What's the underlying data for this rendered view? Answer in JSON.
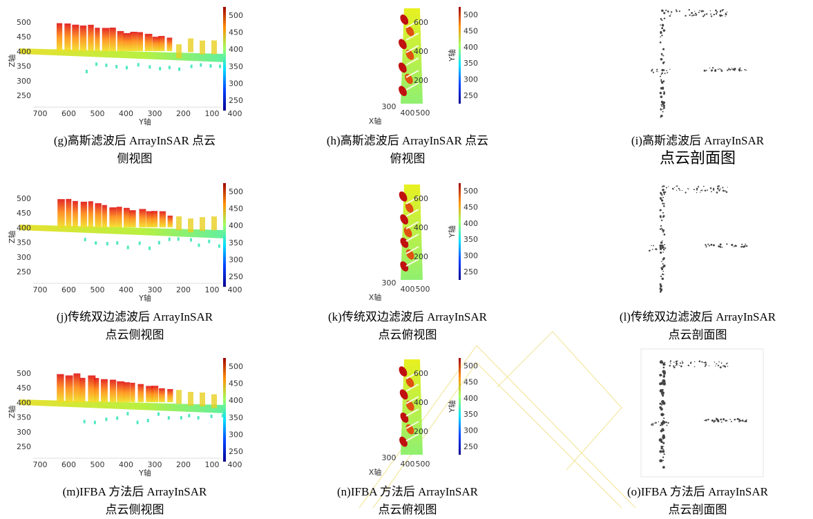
{
  "panels": [
    {
      "type": "side-view",
      "caption": [
        "(g)高斯滤波后 ArrayInSAR 点云",
        "侧视图"
      ],
      "z_axis_label": "Z轴",
      "y_axis_label": "Y轴",
      "z_ticks": [
        "500",
        "450",
        "400",
        "350",
        "300",
        "250"
      ],
      "y_ticks": [
        "700",
        "600",
        "500",
        "400",
        "300",
        "200",
        "100"
      ],
      "depth_tick": "400",
      "colorbar_ticks": [
        "500",
        "450",
        "400",
        "350",
        "300",
        "250"
      ]
    },
    {
      "type": "top-view",
      "caption": [
        "(h)高斯滤波后 ArrayInSAR 点云",
        "俯视图"
      ],
      "y_axis_label": "Y轴",
      "x_axis_label": "X轴",
      "y_ticks": [
        "600",
        "400",
        "200"
      ],
      "x_ticks": [
        "300",
        "400",
        "500"
      ],
      "colorbar_ticks": [
        "500",
        "450",
        "400",
        "350",
        "300",
        "250"
      ]
    },
    {
      "type": "profile",
      "caption": [
        "(i)高斯滤波后 ArrayInSAR",
        "点云剖面图"
      ]
    },
    {
      "type": "side-view",
      "caption": [
        "(j)传统双边滤波后 ArrayInSAR",
        "点云侧视图"
      ],
      "z_axis_label": "Z轴",
      "y_axis_label": "Y轴",
      "z_ticks": [
        "500",
        "450",
        "400",
        "350",
        "300",
        "250"
      ],
      "y_ticks": [
        "700",
        "600",
        "500",
        "400",
        "300",
        "200",
        "100"
      ],
      "depth_tick": "400",
      "colorbar_ticks": [
        "500",
        "450",
        "400",
        "350",
        "300",
        "250"
      ]
    },
    {
      "type": "top-view",
      "caption": [
        "(k)传统双边滤波后 ArrayInSAR",
        "点云俯视图"
      ],
      "y_axis_label": "Y轴",
      "x_axis_label": "X轴",
      "y_ticks": [
        "600",
        "400",
        "200"
      ],
      "x_ticks": [
        "300",
        "400",
        "500"
      ],
      "colorbar_ticks": [
        "500",
        "450",
        "400",
        "350",
        "300",
        "250"
      ]
    },
    {
      "type": "profile",
      "caption": [
        "(l)传统双边滤波后 ArrayInSAR",
        "点云剖面图"
      ]
    },
    {
      "type": "side-view",
      "caption": [
        "(m)IFBA 方法后 ArrayInSAR",
        "点云侧视图"
      ],
      "z_axis_label": "Z轴",
      "y_axis_label": "Y轴",
      "z_ticks": [
        "500",
        "450",
        "400",
        "350",
        "300",
        "250"
      ],
      "y_ticks": [
        "700",
        "600",
        "500",
        "400",
        "300",
        "200",
        "100"
      ],
      "depth_tick": "400",
      "colorbar_ticks": [
        "500",
        "450",
        "400",
        "350",
        "300",
        "250"
      ]
    },
    {
      "type": "top-view",
      "caption": [
        "(n)IFBA 方法后 ArrayInSAR",
        "点云俯视图"
      ],
      "y_axis_label": "Y轴",
      "x_axis_label": "X轴",
      "y_ticks": [
        "600",
        "400",
        "200"
      ],
      "x_ticks": [
        "300",
        "400",
        "500"
      ],
      "colorbar_ticks": [
        "500",
        "450",
        "400",
        "350",
        "300",
        "250"
      ]
    },
    {
      "type": "profile",
      "caption": [
        "(o)IFBA 方法后 ArrayInSAR",
        "点云剖面图"
      ]
    }
  ]
}
